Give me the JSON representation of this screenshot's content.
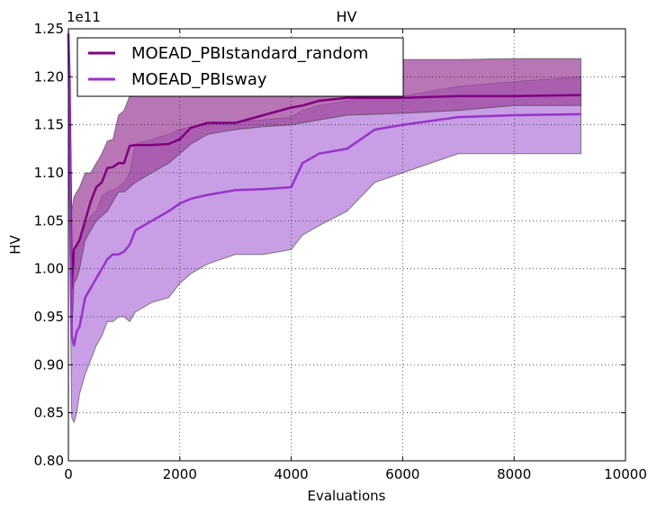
{
  "chart_data": {
    "type": "line",
    "title": "HV",
    "xlabel": "Evaluations",
    "ylabel": "HV",
    "y_multiplier_label": "1e11",
    "xlim": [
      0,
      10000
    ],
    "ylim": [
      0.8,
      1.25
    ],
    "x_ticks": [
      0,
      2000,
      4000,
      6000,
      8000,
      10000
    ],
    "x_tick_labels": [
      "0",
      "2000",
      "4000",
      "6000",
      "8000",
      "10000"
    ],
    "y_ticks": [
      0.8,
      0.85,
      0.9,
      0.95,
      1.0,
      1.05,
      1.1,
      1.15,
      1.2,
      1.25
    ],
    "y_tick_labels": [
      "0.80",
      "0.85",
      "0.90",
      "0.95",
      "1.00",
      "1.05",
      "1.10",
      "1.15",
      "1.20",
      "1.25"
    ],
    "grid": true,
    "legend_position": "top-left",
    "series": [
      {
        "name": "MOEAD_PBIstandard_random",
        "color": "#800080",
        "band_color": "#a0489d",
        "x": [
          0,
          20,
          60,
          100,
          150,
          200,
          300,
          400,
          500,
          600,
          700,
          800,
          900,
          1000,
          1100,
          1200,
          1500,
          1800,
          2000,
          2200,
          2500,
          3000,
          3500,
          4000,
          4200,
          4500,
          5000,
          6000,
          7000,
          8000,
          9200
        ],
        "mean": [
          1.245,
          1.2,
          0.98,
          1.02,
          1.025,
          1.03,
          1.05,
          1.07,
          1.085,
          1.09,
          1.105,
          1.106,
          1.11,
          1.11,
          1.128,
          1.129,
          1.129,
          1.13,
          1.135,
          1.147,
          1.152,
          1.152,
          1.16,
          1.168,
          1.17,
          1.175,
          1.178,
          1.178,
          1.18,
          1.18,
          1.181
        ],
        "upper": [
          1.25,
          1.22,
          1.06,
          1.075,
          1.08,
          1.085,
          1.1,
          1.1,
          1.11,
          1.12,
          1.133,
          1.135,
          1.16,
          1.165,
          1.18,
          1.185,
          1.19,
          1.19,
          1.195,
          1.2,
          1.2,
          1.205,
          1.205,
          1.21,
          1.213,
          1.214,
          1.214,
          1.218,
          1.218,
          1.219,
          1.219
        ],
        "lower": [
          1.24,
          1.1,
          0.93,
          0.985,
          0.99,
          1.0,
          1.03,
          1.04,
          1.05,
          1.055,
          1.06,
          1.07,
          1.08,
          1.08,
          1.085,
          1.09,
          1.1,
          1.11,
          1.12,
          1.13,
          1.14,
          1.145,
          1.148,
          1.15,
          1.152,
          1.155,
          1.16,
          1.162,
          1.165,
          1.17,
          1.17
        ]
      },
      {
        "name": "MOEAD_PBIsway",
        "color": "#9932cc",
        "band_color": "#b57edc",
        "x": [
          0,
          20,
          60,
          100,
          150,
          200,
          300,
          400,
          500,
          600,
          700,
          800,
          900,
          1000,
          1100,
          1200,
          1500,
          1800,
          2000,
          2200,
          2500,
          3000,
          3500,
          4000,
          4200,
          4500,
          5000,
          5500,
          6000,
          7000,
          8000,
          9200
        ],
        "mean": [
          1.245,
          1.15,
          0.93,
          0.92,
          0.935,
          0.94,
          0.97,
          0.98,
          0.99,
          1.0,
          1.01,
          1.015,
          1.015,
          1.018,
          1.025,
          1.04,
          1.05,
          1.06,
          1.068,
          1.073,
          1.077,
          1.082,
          1.083,
          1.085,
          1.11,
          1.12,
          1.125,
          1.145,
          1.15,
          1.158,
          1.16,
          1.161
        ],
        "upper": [
          1.25,
          1.2,
          1.01,
          1.0,
          1.02,
          1.03,
          1.045,
          1.055,
          1.06,
          1.075,
          1.08,
          1.082,
          1.085,
          1.09,
          1.1,
          1.13,
          1.135,
          1.14,
          1.145,
          1.148,
          1.15,
          1.153,
          1.155,
          1.158,
          1.165,
          1.17,
          1.175,
          1.178,
          1.18,
          1.19,
          1.195,
          1.2
        ],
        "lower": [
          1.24,
          1.05,
          0.845,
          0.84,
          0.85,
          0.87,
          0.89,
          0.905,
          0.92,
          0.93,
          0.945,
          0.945,
          0.95,
          0.95,
          0.945,
          0.955,
          0.965,
          0.97,
          0.985,
          0.995,
          1.005,
          1.015,
          1.015,
          1.02,
          1.035,
          1.045,
          1.06,
          1.09,
          1.1,
          1.12,
          1.12,
          1.12
        ]
      }
    ]
  }
}
